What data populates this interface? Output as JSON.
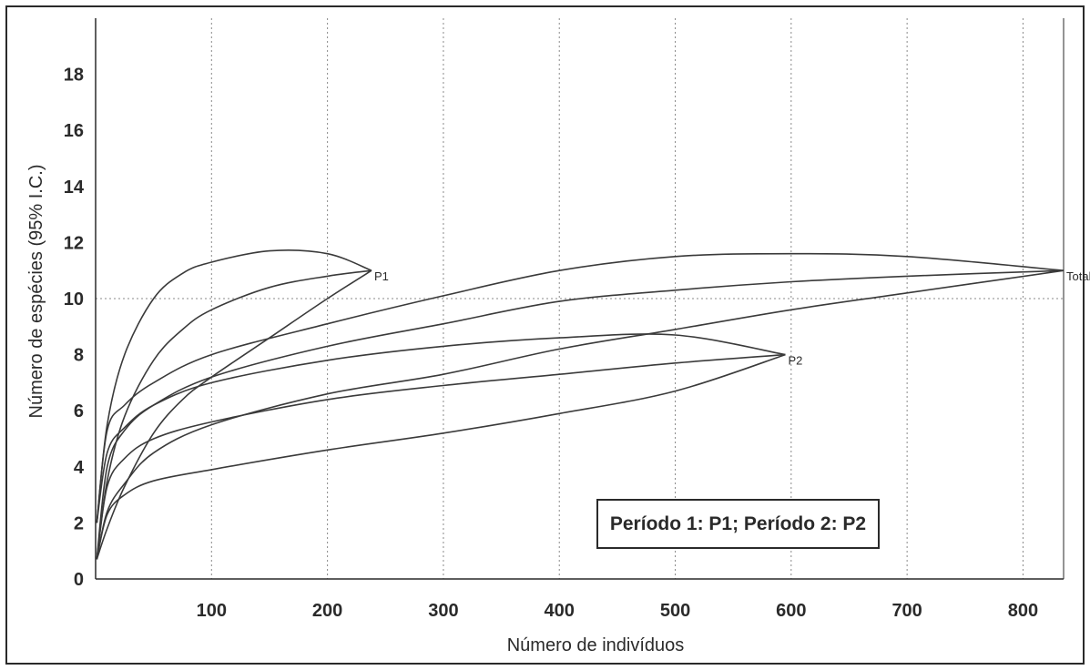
{
  "chart_data": {
    "type": "line",
    "title": "",
    "xlabel": "Número de indivíduos",
    "ylabel": "Número de espécies (95% I.C.)",
    "xlim": [
      0,
      835
    ],
    "ylim": [
      0,
      20
    ],
    "xticks": [
      100,
      200,
      300,
      400,
      500,
      600,
      700,
      800
    ],
    "yticks": [
      0,
      2,
      4,
      6,
      8,
      10,
      12,
      14,
      16,
      18
    ],
    "grid": true,
    "reference_lines": [
      {
        "axis": "y",
        "value": 10,
        "style": "dotted"
      }
    ],
    "legend_text": "Período 1: P1; Período 2: P2",
    "legend_position": "bottom-right",
    "series": [
      {
        "name": "P1",
        "end_label": "P1",
        "end_point": [
          238,
          11
        ],
        "mean": [
          [
            1,
            0.7
          ],
          [
            10,
            3.5
          ],
          [
            25,
            5.8
          ],
          [
            50,
            7.8
          ],
          [
            75,
            8.9
          ],
          [
            100,
            9.6
          ],
          [
            150,
            10.4
          ],
          [
            200,
            10.8
          ],
          [
            238,
            11
          ]
        ],
        "upper": [
          [
            1,
            2
          ],
          [
            10,
            5.5
          ],
          [
            25,
            8.0
          ],
          [
            50,
            10.0
          ],
          [
            75,
            10.9
          ],
          [
            100,
            11.3
          ],
          [
            150,
            11.7
          ],
          [
            200,
            11.6
          ],
          [
            238,
            11
          ]
        ],
        "lower": [
          [
            1,
            0.7
          ],
          [
            10,
            1.8
          ],
          [
            25,
            3.3
          ],
          [
            50,
            5.2
          ],
          [
            75,
            6.4
          ],
          [
            100,
            7.2
          ],
          [
            150,
            8.6
          ],
          [
            200,
            10.0
          ],
          [
            238,
            11
          ]
        ]
      },
      {
        "name": "P2",
        "end_label": "P2",
        "end_point": [
          595,
          8
        ],
        "mean": [
          [
            1,
            0.7
          ],
          [
            10,
            3.3
          ],
          [
            25,
            4.3
          ],
          [
            50,
            5.0
          ],
          [
            100,
            5.6
          ],
          [
            200,
            6.4
          ],
          [
            300,
            6.9
          ],
          [
            400,
            7.3
          ],
          [
            500,
            7.7
          ],
          [
            595,
            8
          ]
        ],
        "upper": [
          [
            1,
            2
          ],
          [
            10,
            4.5
          ],
          [
            25,
            5.4
          ],
          [
            50,
            6.2
          ],
          [
            100,
            7.0
          ],
          [
            200,
            7.8
          ],
          [
            300,
            8.3
          ],
          [
            400,
            8.6
          ],
          [
            500,
            8.7
          ],
          [
            595,
            8
          ]
        ],
        "lower": [
          [
            1,
            0.7
          ],
          [
            10,
            2.3
          ],
          [
            25,
            3.0
          ],
          [
            50,
            3.5
          ],
          [
            100,
            3.9
          ],
          [
            200,
            4.6
          ],
          [
            300,
            5.2
          ],
          [
            400,
            5.9
          ],
          [
            500,
            6.7
          ],
          [
            595,
            8
          ]
        ]
      },
      {
        "name": "Total",
        "end_label": "Total",
        "end_point": [
          835,
          11
        ],
        "mean": [
          [
            1,
            0.7
          ],
          [
            10,
            4.0
          ],
          [
            25,
            5.3
          ],
          [
            50,
            6.2
          ],
          [
            100,
            7.2
          ],
          [
            200,
            8.3
          ],
          [
            300,
            9.1
          ],
          [
            400,
            9.9
          ],
          [
            500,
            10.3
          ],
          [
            600,
            10.6
          ],
          [
            700,
            10.8
          ],
          [
            835,
            11
          ]
        ],
        "upper": [
          [
            1,
            2
          ],
          [
            10,
            5.3
          ],
          [
            25,
            6.2
          ],
          [
            50,
            7.0
          ],
          [
            100,
            8.0
          ],
          [
            200,
            9.1
          ],
          [
            300,
            10.1
          ],
          [
            400,
            11.0
          ],
          [
            500,
            11.5
          ],
          [
            600,
            11.6
          ],
          [
            700,
            11.5
          ],
          [
            835,
            11
          ]
        ],
        "lower": [
          [
            1,
            0.7
          ],
          [
            10,
            2.4
          ],
          [
            25,
            3.4
          ],
          [
            50,
            4.5
          ],
          [
            100,
            5.5
          ],
          [
            200,
            6.6
          ],
          [
            300,
            7.3
          ],
          [
            400,
            8.2
          ],
          [
            500,
            8.9
          ],
          [
            600,
            9.6
          ],
          [
            700,
            10.2
          ],
          [
            835,
            11
          ]
        ]
      }
    ]
  }
}
